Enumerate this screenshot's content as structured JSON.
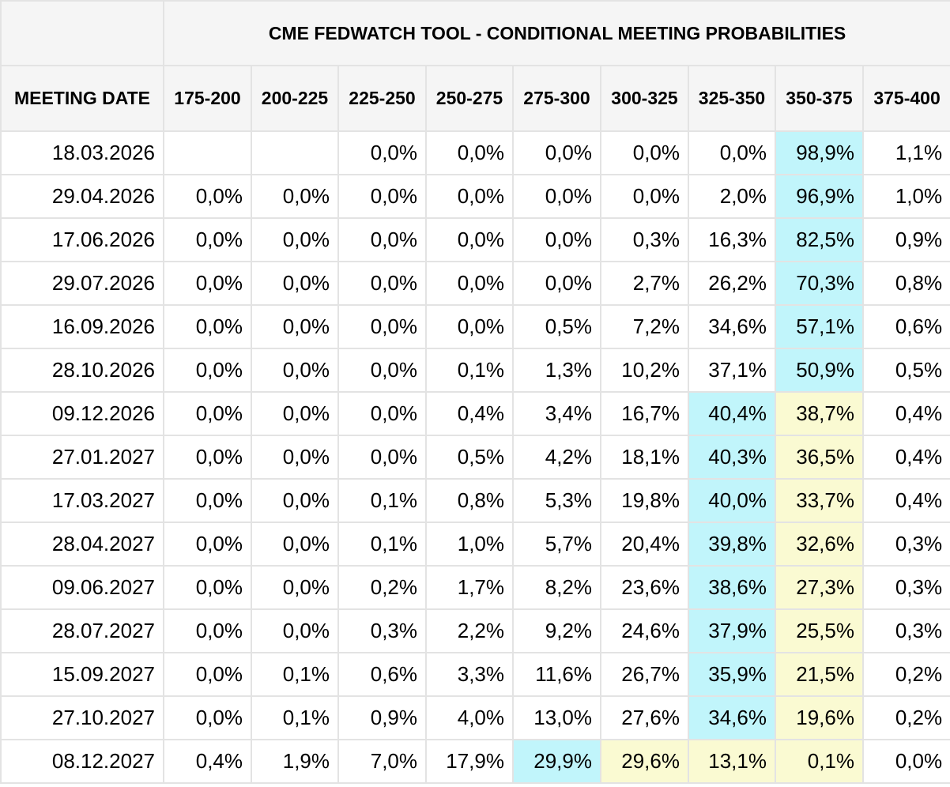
{
  "title": "CME FEDWATCH TOOL - CONDITIONAL MEETING PROBABILITIES",
  "colors": {
    "highest": "#c1f5fb",
    "second": "#fafad2",
    "header_bg": "#f5f5f5",
    "grid": "#e3e3e3"
  },
  "columns": [
    "MEETING DATE",
    "175-200",
    "200-225",
    "225-250",
    "250-275",
    "275-300",
    "300-325",
    "325-350",
    "350-375",
    "375-400"
  ],
  "rows": [
    {
      "date": "18.03.2026",
      "values": [
        "",
        "",
        "0,0%",
        "0,0%",
        "0,0%",
        "0,0%",
        "0,0%",
        "98,9%",
        "1,1%"
      ],
      "highlight_max": 7,
      "highlight_second": null
    },
    {
      "date": "29.04.2026",
      "values": [
        "0,0%",
        "0,0%",
        "0,0%",
        "0,0%",
        "0,0%",
        "0,0%",
        "2,0%",
        "96,9%",
        "1,0%"
      ],
      "highlight_max": 7,
      "highlight_second": null
    },
    {
      "date": "17.06.2026",
      "values": [
        "0,0%",
        "0,0%",
        "0,0%",
        "0,0%",
        "0,0%",
        "0,3%",
        "16,3%",
        "82,5%",
        "0,9%"
      ],
      "highlight_max": 7,
      "highlight_second": null
    },
    {
      "date": "29.07.2026",
      "values": [
        "0,0%",
        "0,0%",
        "0,0%",
        "0,0%",
        "0,0%",
        "2,7%",
        "26,2%",
        "70,3%",
        "0,8%"
      ],
      "highlight_max": 7,
      "highlight_second": null
    },
    {
      "date": "16.09.2026",
      "values": [
        "0,0%",
        "0,0%",
        "0,0%",
        "0,0%",
        "0,5%",
        "7,2%",
        "34,6%",
        "57,1%",
        "0,6%"
      ],
      "highlight_max": 7,
      "highlight_second": null
    },
    {
      "date": "28.10.2026",
      "values": [
        "0,0%",
        "0,0%",
        "0,0%",
        "0,1%",
        "1,3%",
        "10,2%",
        "37,1%",
        "50,9%",
        "0,5%"
      ],
      "highlight_max": 7,
      "highlight_second": null
    },
    {
      "date": "09.12.2026",
      "values": [
        "0,0%",
        "0,0%",
        "0,0%",
        "0,4%",
        "3,4%",
        "16,7%",
        "40,4%",
        "38,7%",
        "0,4%"
      ],
      "highlight_max": 6,
      "highlight_second": 7
    },
    {
      "date": "27.01.2027",
      "values": [
        "0,0%",
        "0,0%",
        "0,0%",
        "0,5%",
        "4,2%",
        "18,1%",
        "40,3%",
        "36,5%",
        "0,4%"
      ],
      "highlight_max": 6,
      "highlight_second": 7
    },
    {
      "date": "17.03.2027",
      "values": [
        "0,0%",
        "0,0%",
        "0,1%",
        "0,8%",
        "5,3%",
        "19,8%",
        "40,0%",
        "33,7%",
        "0,4%"
      ],
      "highlight_max": 6,
      "highlight_second": 7
    },
    {
      "date": "28.04.2027",
      "values": [
        "0,0%",
        "0,0%",
        "0,1%",
        "1,0%",
        "5,7%",
        "20,4%",
        "39,8%",
        "32,6%",
        "0,3%"
      ],
      "highlight_max": 6,
      "highlight_second": 7
    },
    {
      "date": "09.06.2027",
      "values": [
        "0,0%",
        "0,0%",
        "0,2%",
        "1,7%",
        "8,2%",
        "23,6%",
        "38,6%",
        "27,3%",
        "0,3%"
      ],
      "highlight_max": 6,
      "highlight_second": 7
    },
    {
      "date": "28.07.2027",
      "values": [
        "0,0%",
        "0,0%",
        "0,3%",
        "2,2%",
        "9,2%",
        "24,6%",
        "37,9%",
        "25,5%",
        "0,3%"
      ],
      "highlight_max": 6,
      "highlight_second": 7
    },
    {
      "date": "15.09.2027",
      "values": [
        "0,0%",
        "0,1%",
        "0,6%",
        "3,3%",
        "11,6%",
        "26,7%",
        "35,9%",
        "21,5%",
        "0,2%"
      ],
      "highlight_max": 6,
      "highlight_second": 7
    },
    {
      "date": "27.10.2027",
      "values": [
        "0,0%",
        "0,1%",
        "0,9%",
        "4,0%",
        "13,0%",
        "27,6%",
        "34,6%",
        "19,6%",
        "0,2%"
      ],
      "highlight_max": 6,
      "highlight_second": 7
    },
    {
      "date": "08.12.2027",
      "values": [
        "0,4%",
        "1,9%",
        "7,0%",
        "17,9%",
        "29,9%",
        "29,6%",
        "13,1%",
        "0,1%",
        "0,0%"
      ],
      "highlight_max": 4,
      "highlight_second": 5,
      "highlight_extra": [
        6,
        7
      ]
    }
  ]
}
